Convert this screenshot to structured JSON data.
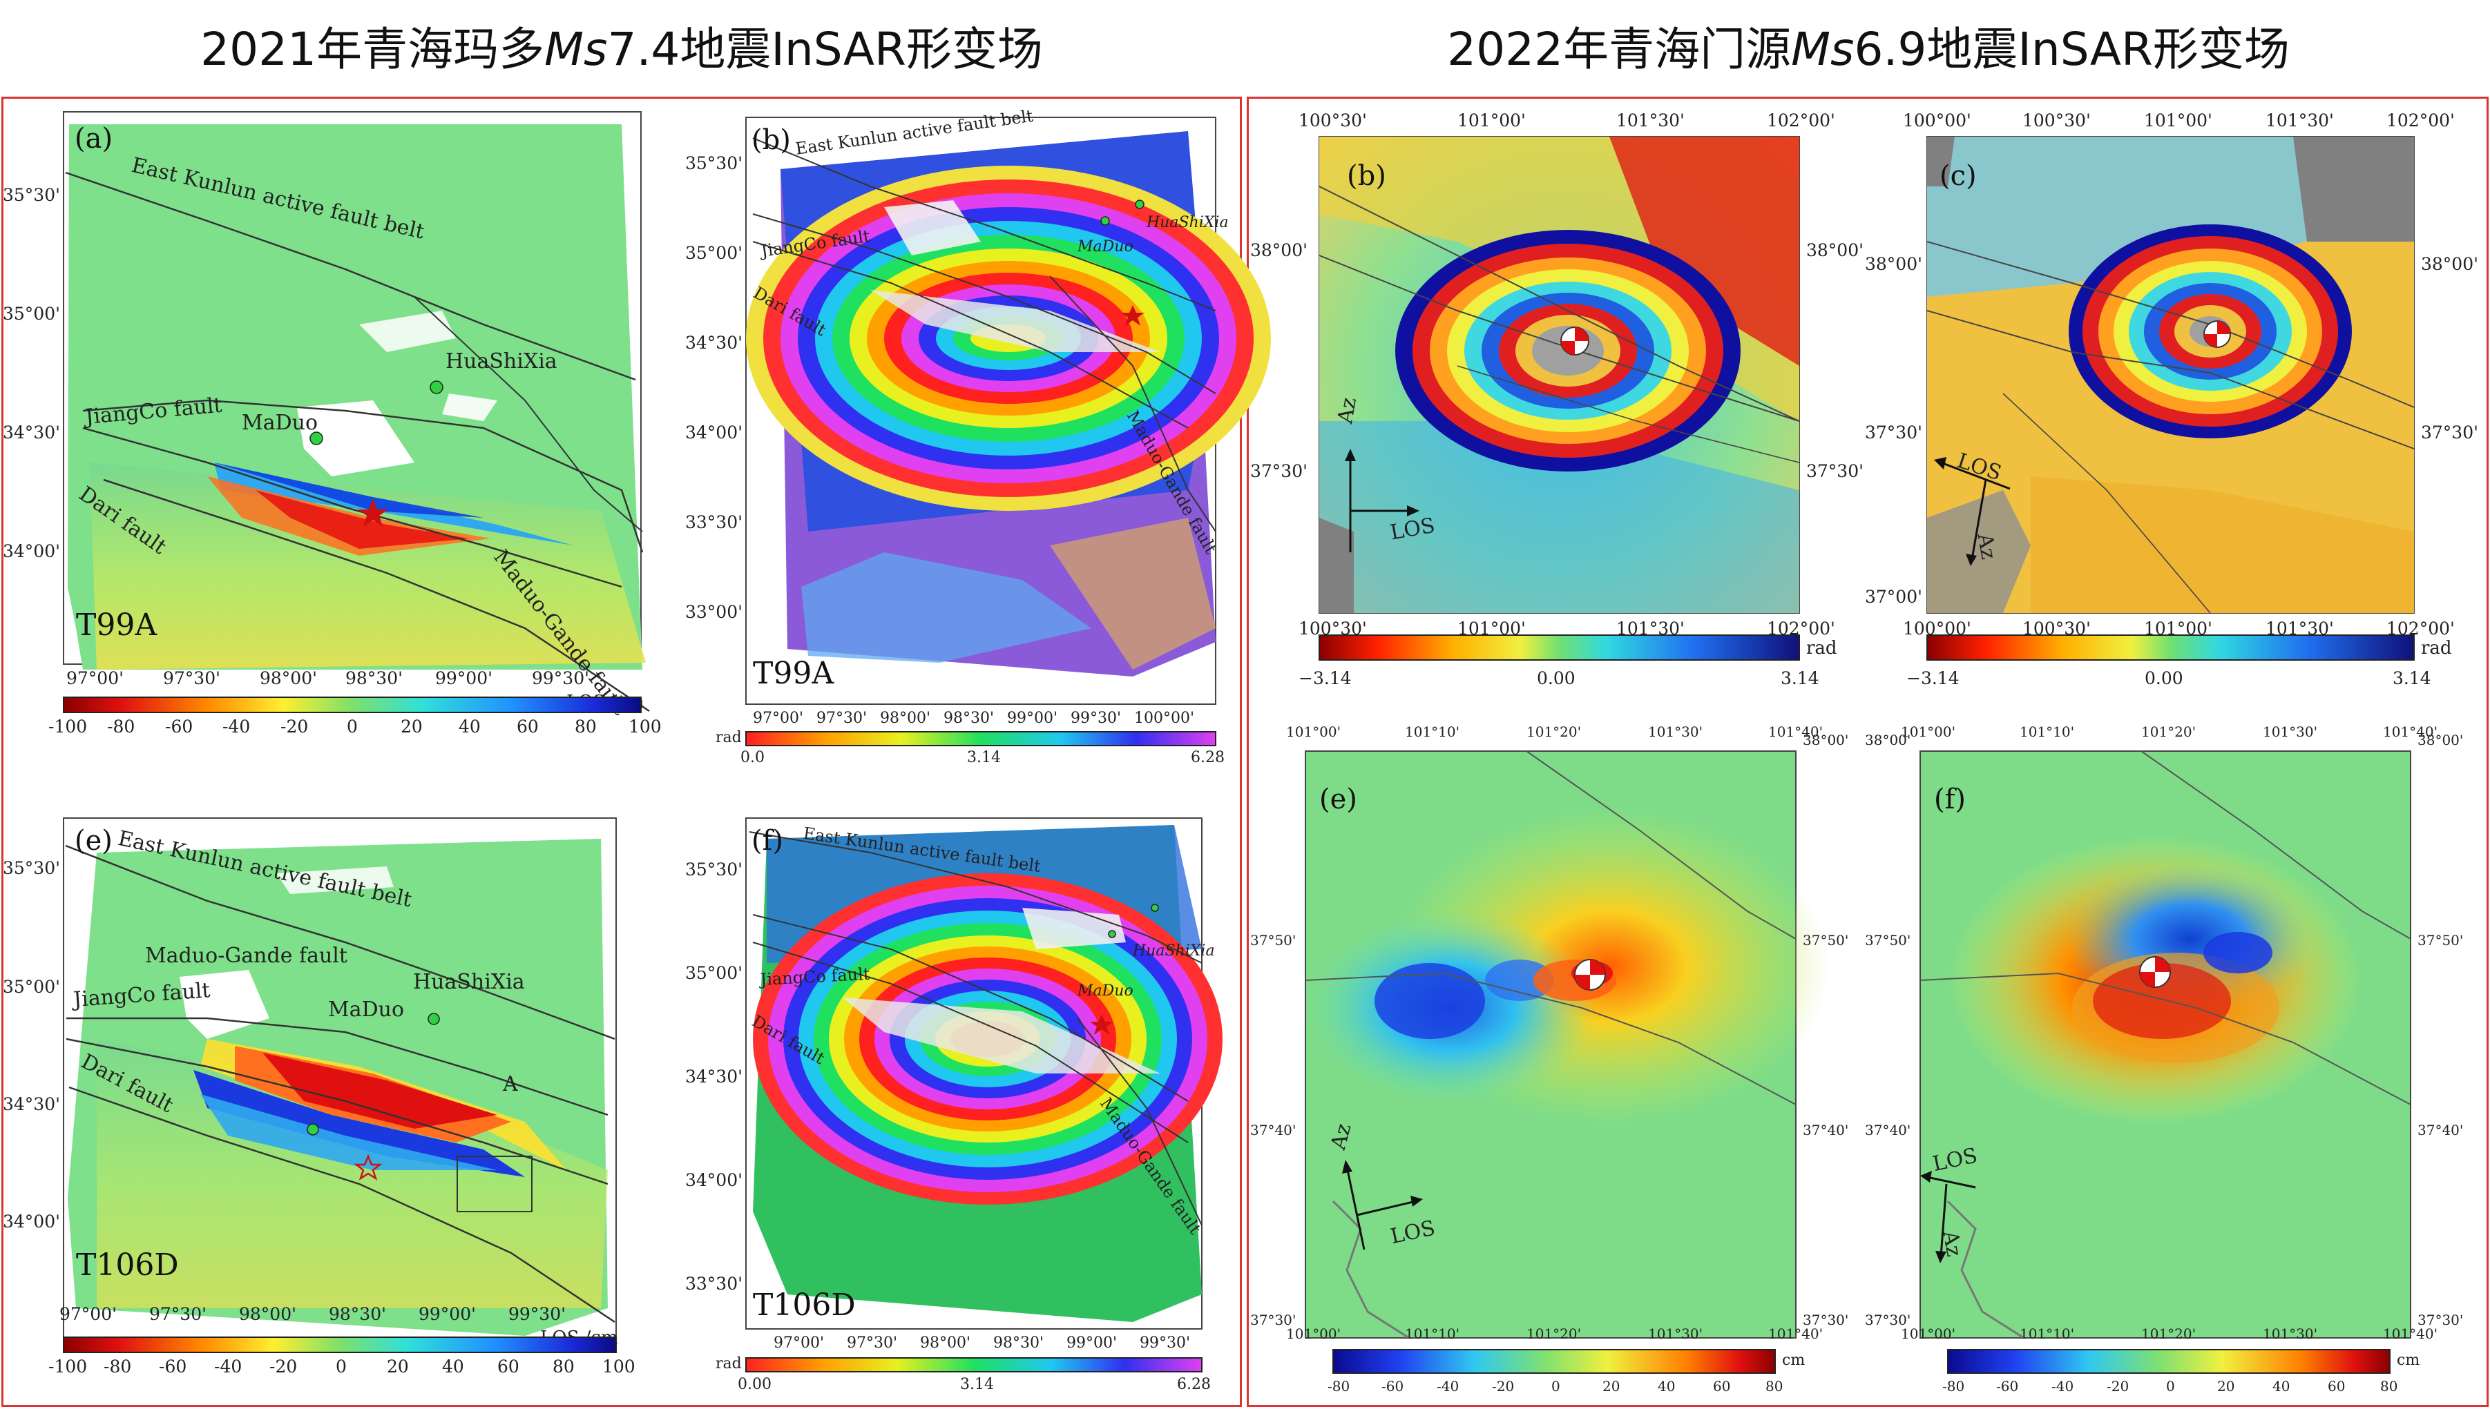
{
  "headers": {
    "left_prefix": "2021年青海玛多",
    "left_ms": "Ms",
    "left_suffix": "7.4地震InSAR形变场",
    "right_prefix": "2022年青海门源",
    "right_ms": "Ms",
    "right_suffix": "6.9地震InSAR形变场"
  },
  "maduo": {
    "faults": {
      "east_kunlun": "East Kunlun active fault belt",
      "jiangco": "JiangCo fault",
      "dari": "Dari fault",
      "maduo_gande": "Maduo-Gande fault"
    },
    "places": {
      "maduo": "MaDuo",
      "huashixia": "HuaShiXia"
    },
    "lat_ticks_top": [
      "35°30'",
      "35°00'",
      "34°30'",
      "34°00'"
    ],
    "lon_ticks_los": [
      "97°00'",
      "97°30'",
      "98°00'",
      "98°30'",
      "99°00'",
      "99°30'"
    ],
    "lat_ticks_b": [
      "35°30'",
      "35°00'",
      "34°30'",
      "34°00'",
      "33°30'",
      "33°00'"
    ],
    "lon_ticks_b": [
      "97°00'",
      "97°30'",
      "98°00'",
      "98°30'",
      "99°00'",
      "99°30'",
      "100°00'"
    ],
    "lat_ticks_f": [
      "35°30'",
      "35°00'",
      "34°30'",
      "34°00'",
      "33°30'"
    ],
    "lon_ticks_f": [
      "97°00'",
      "97°30'",
      "98°00'",
      "98°30'",
      "99°00'",
      "99°30'"
    ],
    "panel_a": {
      "letter": "(a)",
      "track": "T99A"
    },
    "panel_b": {
      "letter": "(b)",
      "track": "T99A"
    },
    "panel_e": {
      "letter": "(e)",
      "track": "T106D",
      "box_label": "A"
    },
    "panel_f": {
      "letter": "(f)",
      "track": "T106D"
    },
    "los_unit": "LOS /cm",
    "los_ticks": [
      "-100",
      "-80",
      "-60",
      "-40",
      "-20",
      "0",
      "20",
      "40",
      "60",
      "80",
      "100"
    ],
    "rad_unit": "rad",
    "rad_ticks_b": [
      "0.0",
      "3.14",
      "6.28"
    ],
    "rad_ticks_f": [
      "0.00",
      "3.14",
      "6.28"
    ]
  },
  "menyuan": {
    "panel_b": {
      "letter": "(b)"
    },
    "panel_c": {
      "letter": "(c)"
    },
    "panel_e": {
      "letter": "(e)"
    },
    "panel_f": {
      "letter": "(f)"
    },
    "lon_ticks_b": [
      "100°30'",
      "101°00'",
      "101°30'",
      "102°00'"
    ],
    "lat_ticks_b": [
      "38°00'",
      "37°30'"
    ],
    "lon_ticks_c": [
      "100°00'",
      "100°30'",
      "101°00'",
      "101°30'",
      "102°00'"
    ],
    "lat_ticks_c_left": [
      "38°00'",
      "37°30'",
      "37°00'"
    ],
    "lat_ticks_c_right": [
      "38°00'",
      "37°30'"
    ],
    "lon_ticks_ef": [
      "101°00'",
      "101°10'",
      "101°20'",
      "101°30'",
      "101°40'"
    ],
    "lat_ticks_ef": [
      "38°00'",
      "37°50'",
      "37°40'",
      "37°30'"
    ],
    "az": "Az",
    "los": "LOS",
    "rad_unit": "rad",
    "rad_ticks": [
      "−3.14",
      "0.00",
      "3.14"
    ],
    "cm_unit": "cm",
    "cm_ticks": [
      "-80",
      "-60",
      "-40",
      "-20",
      "0",
      "20",
      "40",
      "60",
      "80"
    ]
  }
}
